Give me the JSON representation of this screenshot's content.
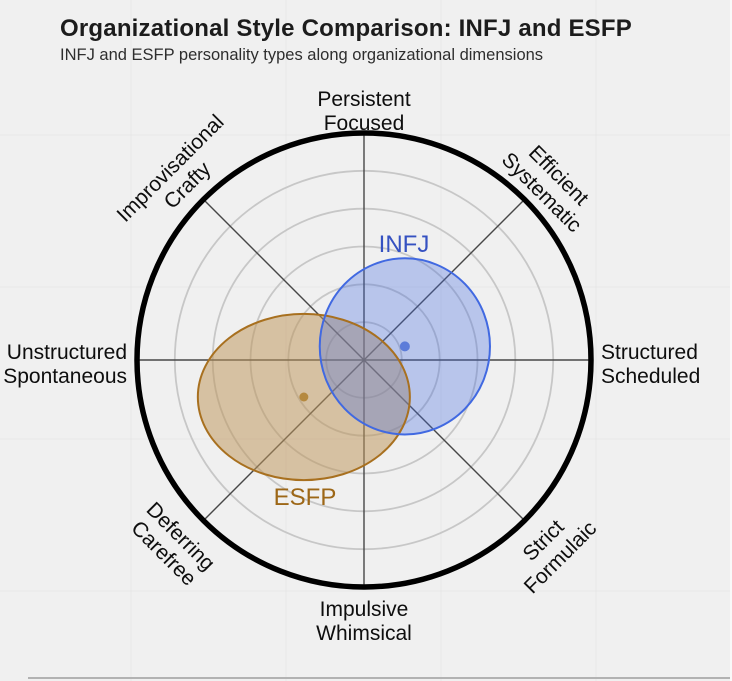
{
  "header": {
    "title": "Organizational Style Comparison: INFJ and ESFP",
    "subtitle": "INFJ and ESFP personality types along organizational dimensions"
  },
  "colors": {
    "background": "#f0f0f0",
    "outer_ring": "#000000",
    "grid_ring": "#c7c7c7",
    "spoke": "#474747",
    "faint_grid": "#e7e7e7",
    "divider": "#b2b2b2",
    "infj_stroke": "#4169e1",
    "infj_fill": "rgba(65,105,225,0.32)",
    "infj_text": "#3551c1",
    "infj_dot": "#5c7cd9",
    "esfp_stroke": "#a8701f",
    "esfp_fill": "rgba(190,150,90,0.52)",
    "esfp_text": "#9d6717",
    "esfp_dot": "#b5893f"
  },
  "chart_data": {
    "type": "scatter",
    "subtype": "polar-ellipse-comparison",
    "title": "Organizational Style Comparison: INFJ and ESFP",
    "subtitle": "INFJ and ESFP personality types along organizational dimensions",
    "legend_position": "labels-on-plot",
    "grid": true,
    "ring_fractions": [
      0.1667,
      0.3333,
      0.5,
      0.6667,
      0.8333
    ],
    "outer_ring_fraction": 1.0,
    "axis_convention": "x: Unstructured(-1) to Structured(+1); y: Impulsive(-1) to Persistent(+1); units are fraction of outer ring radius",
    "axes": [
      {
        "position": "top",
        "angle_deg": 90,
        "line1": "Persistent",
        "line2": "Focused"
      },
      {
        "position": "top-right",
        "angle_deg": 45,
        "line1": "Efficient",
        "line2": "Systematic"
      },
      {
        "position": "right",
        "angle_deg": 0,
        "line1": "Structured",
        "line2": "Scheduled"
      },
      {
        "position": "bottom-right",
        "angle_deg": -45,
        "line1": "Strict",
        "line2": "Formulaic"
      },
      {
        "position": "bottom",
        "angle_deg": -90,
        "line1": "Impulsive",
        "line2": "Whimsical"
      },
      {
        "position": "bottom-left",
        "angle_deg": -135,
        "line1": "Deferring",
        "line2": "Carefree"
      },
      {
        "position": "left",
        "angle_deg": 180,
        "line1": "Unstructured",
        "line2": "Spontaneous"
      },
      {
        "position": "top-left",
        "angle_deg": 135,
        "line1": "Improvisational",
        "line2": "Crafty"
      }
    ],
    "series": [
      {
        "name": "INFJ",
        "center": {
          "x": 0.18,
          "y": 0.06
        },
        "rx": 0.375,
        "ry": 0.388,
        "stroke": "#4169e1",
        "fill": "rgba(65,105,225,0.32)",
        "label_color": "#3551c1",
        "dot_color": "#5c7cd9"
      },
      {
        "name": "ESFP",
        "center": {
          "x": -0.265,
          "y": -0.163
        },
        "rx": 0.467,
        "ry": 0.366,
        "stroke": "#a8701f",
        "fill": "rgba(190,150,90,0.52)",
        "label_color": "#9d6717",
        "dot_color": "#b5893f"
      }
    ]
  }
}
